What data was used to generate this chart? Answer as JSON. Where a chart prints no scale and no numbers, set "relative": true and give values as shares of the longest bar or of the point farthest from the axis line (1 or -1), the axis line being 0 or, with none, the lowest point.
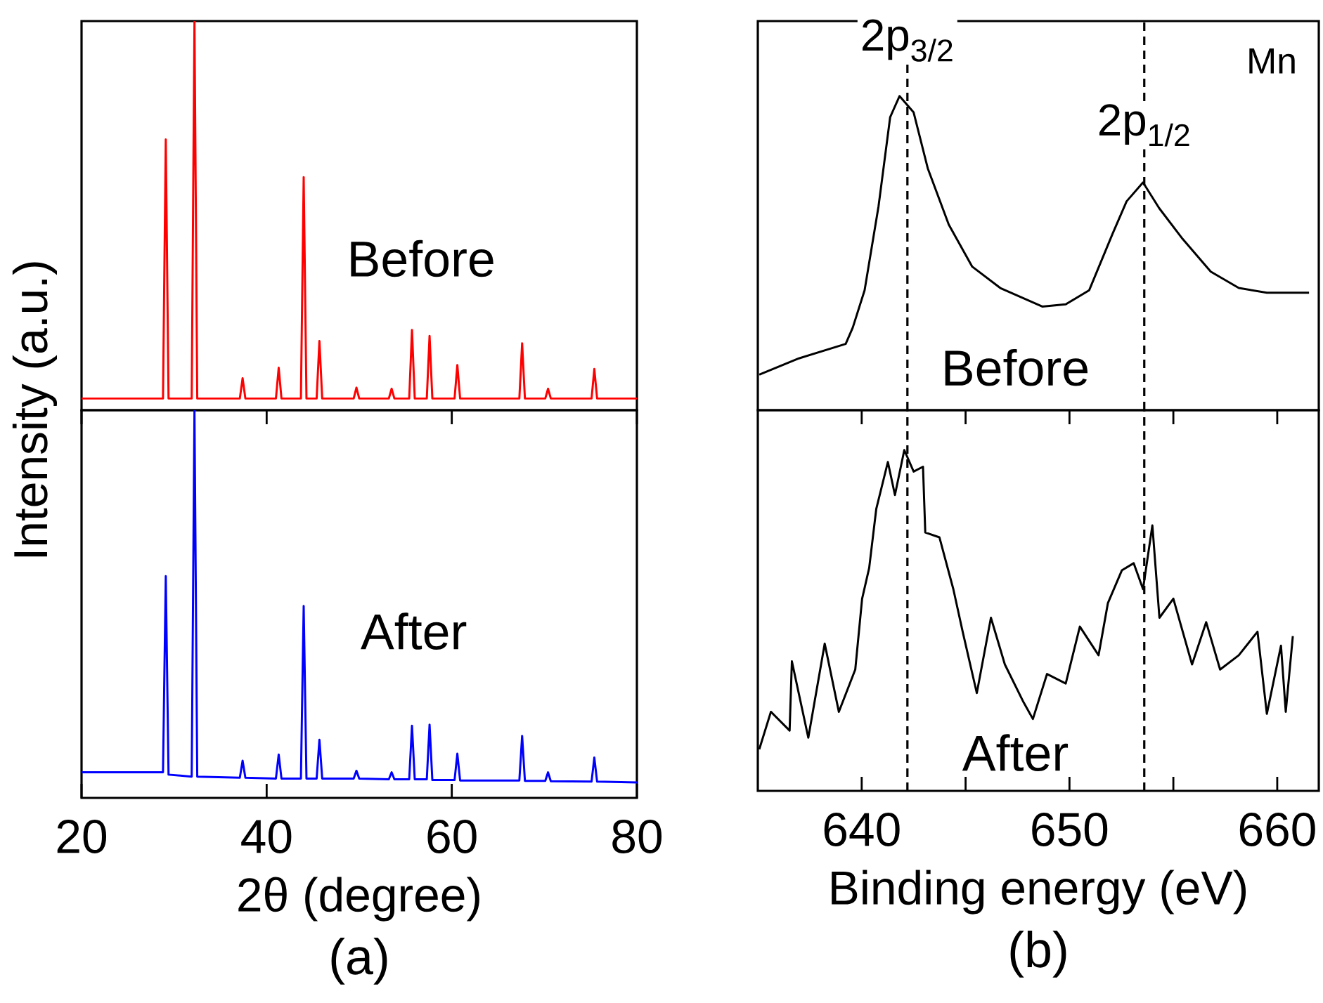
{
  "chart_data": [
    {
      "type": "line",
      "relative": true,
      "xlim": [
        20,
        80
      ],
      "tick_labels": false,
      "ylabel": "Intensity (a.u.)",
      "series": [
        {
          "name": "Before",
          "color": "#ff0000",
          "x": [
            20,
            28.8,
            29.1,
            29.4,
            31.9,
            32.2,
            32.5,
            37.1,
            37.4,
            37.7,
            41.0,
            41.3,
            41.6,
            43.7,
            44.0,
            44.3,
            45.4,
            45.7,
            46.0,
            49.4,
            49.7,
            50.0,
            53.2,
            53.5,
            53.8,
            55.4,
            55.7,
            56.0,
            57.3,
            57.6,
            57.9,
            60.3,
            60.6,
            60.9,
            67.3,
            67.6,
            67.9,
            70.1,
            70.4,
            70.7,
            75.1,
            75.4,
            75.7,
            80
          ],
          "values": [
            0.03,
            0.03,
            0.696,
            0.03,
            0.03,
            1.0,
            0.03,
            0.03,
            0.082,
            0.03,
            0.03,
            0.109,
            0.03,
            0.03,
            0.599,
            0.03,
            0.03,
            0.178,
            0.03,
            0.03,
            0.058,
            0.03,
            0.03,
            0.055,
            0.03,
            0.03,
            0.206,
            0.03,
            0.03,
            0.191,
            0.03,
            0.03,
            0.116,
            0.03,
            0.03,
            0.172,
            0.03,
            0.03,
            0.055,
            0.03,
            0.03,
            0.106,
            0.03,
            0.03
          ]
        }
      ]
    },
    {
      "type": "line",
      "relative": true,
      "xlim": [
        20,
        80
      ],
      "xticks": [
        20,
        40,
        60,
        80
      ],
      "tick_labels": "x",
      "xlabel": "2θ (degree)",
      "annotations": [
        "(a)"
      ],
      "series": [
        {
          "name": "After",
          "color": "#0000ff",
          "x": [
            20,
            28.8,
            29.1,
            29.4,
            31.9,
            32.2,
            32.5,
            37.1,
            37.4,
            37.7,
            41.0,
            41.3,
            41.6,
            43.7,
            44.0,
            44.3,
            45.4,
            45.7,
            46.0,
            49.4,
            49.7,
            50.0,
            53.2,
            53.5,
            53.8,
            55.4,
            55.7,
            56.0,
            57.3,
            57.6,
            57.9,
            60.3,
            60.6,
            60.9,
            67.3,
            67.6,
            67.9,
            70.1,
            70.4,
            70.7,
            75.1,
            75.4,
            75.7,
            80
          ],
          "values": [
            0.066,
            0.066,
            0.572,
            0.06,
            0.055,
            1.0,
            0.055,
            0.052,
            0.096,
            0.052,
            0.05,
            0.112,
            0.05,
            0.05,
            0.495,
            0.05,
            0.05,
            0.15,
            0.05,
            0.05,
            0.07,
            0.05,
            0.048,
            0.066,
            0.048,
            0.048,
            0.186,
            0.048,
            0.048,
            0.189,
            0.046,
            0.046,
            0.114,
            0.045,
            0.045,
            0.16,
            0.044,
            0.044,
            0.066,
            0.043,
            0.042,
            0.104,
            0.042,
            0.04
          ]
        }
      ]
    },
    {
      "type": "line",
      "relative": true,
      "xlim": [
        635,
        662
      ],
      "tick_labels": false,
      "ref_lines": [
        {
          "axis": "x",
          "value": 642.2,
          "line_style": "dashed",
          "color": "#000000"
        },
        {
          "axis": "x",
          "value": 653.6,
          "line_style": "dashed",
          "color": "#000000"
        }
      ],
      "annotations": [
        {
          "text": "2p$_{3/2}$",
          "x": 642.2,
          "y": 1.1
        },
        {
          "text": "2p$_{1/2}$",
          "x": 653.6,
          "y": 0.83
        },
        "Mn"
      ],
      "series": [
        {
          "name": "Before",
          "color": "#000000",
          "x": [
            635.07,
            636.98,
            639.23,
            639.57,
            640.14,
            640.81,
            641.37,
            641.82,
            642.5,
            643.18,
            644.19,
            645.32,
            646.67,
            648.69,
            649.82,
            650.95,
            652.07,
            652.75,
            653.54,
            654.32,
            655.45,
            656.8,
            658.15,
            659.5,
            661.53
          ],
          "values": [
            0.113,
            0.165,
            0.211,
            0.263,
            0.382,
            0.649,
            0.933,
            1.0,
            0.948,
            0.77,
            0.591,
            0.457,
            0.389,
            0.33,
            0.337,
            0.382,
            0.561,
            0.665,
            0.725,
            0.643,
            0.545,
            0.441,
            0.389,
            0.374,
            0.374
          ]
        }
      ]
    },
    {
      "type": "line",
      "relative": true,
      "xlim": [
        635,
        662
      ],
      "xticks": [
        640,
        {
          "value": 645,
          "label": null
        },
        650,
        {
          "value": 655,
          "label": null
        },
        660
      ],
      "tick_labels": "x",
      "xlabel": "Binding energy (eV)",
      "annotations": [
        "(b)"
      ],
      "ref_lines": [
        {
          "axis": "x",
          "value": 642.2,
          "line_style": "dashed",
          "color": "#000000"
        },
        {
          "axis": "x",
          "value": 653.6,
          "line_style": "dashed",
          "color": "#000000"
        }
      ],
      "series": [
        {
          "name": "After",
          "color": "#000000",
          "x": [
            635.07,
            635.63,
            636.53,
            636.64,
            637.43,
            638.22,
            638.9,
            639.69,
            640.02,
            640.36,
            640.7,
            641.26,
            641.6,
            642.05,
            642.5,
            642.95,
            643.06,
            643.74,
            644.41,
            644.86,
            645.54,
            646.22,
            646.89,
            647.79,
            648.24,
            648.92,
            649.82,
            650.5,
            651.4,
            651.85,
            652.52,
            653.09,
            653.54,
            653.99,
            654.33,
            655.0,
            655.9,
            656.58,
            657.25,
            658.15,
            659.05,
            659.5,
            660.18,
            660.41,
            660.75
          ],
          "values": [
            0.122,
            0.232,
            0.177,
            0.38,
            0.156,
            0.432,
            0.232,
            0.356,
            0.564,
            0.654,
            0.827,
            0.965,
            0.868,
            1.0,
            0.937,
            0.951,
            0.758,
            0.744,
            0.592,
            0.467,
            0.287,
            0.508,
            0.371,
            0.26,
            0.211,
            0.343,
            0.315,
            0.482,
            0.398,
            0.551,
            0.647,
            0.668,
            0.592,
            0.779,
            0.508,
            0.564,
            0.371,
            0.495,
            0.356,
            0.398,
            0.467,
            0.226,
            0.426,
            0.232,
            0.454
          ]
        }
      ]
    }
  ]
}
